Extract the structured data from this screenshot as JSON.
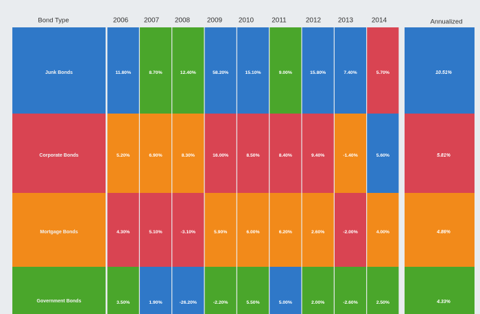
{
  "chart_data": {
    "type": "table",
    "header_label": "Bond Type",
    "years": [
      "2006",
      "2007",
      "2008",
      "2009",
      "2010",
      "2011",
      "2012",
      "2013",
      "2014"
    ],
    "annualized_label": "Annualized",
    "colors": {
      "Junk Bonds": "#2f78c8",
      "Corporate Bonds": "#d94452",
      "Mortgage Bonds": "#f28a1a",
      "Government Bonds": "#4aa62b"
    },
    "grid": [
      [
        {
          "label": "11.80%",
          "bond": "Junk Bonds"
        },
        {
          "label": "8.70%",
          "bond": "Government Bonds"
        },
        {
          "label": "12.40%",
          "bond": "Government Bonds"
        },
        {
          "label": "58.20%",
          "bond": "Junk Bonds"
        },
        {
          "label": "15.10%",
          "bond": "Junk Bonds"
        },
        {
          "label": "9.00%",
          "bond": "Government Bonds"
        },
        {
          "label": "15.80%",
          "bond": "Junk Bonds"
        },
        {
          "label": "7.40%",
          "bond": "Junk Bonds"
        },
        {
          "label": "5.70%",
          "bond": "Corporate Bonds"
        }
      ],
      [
        {
          "label": "5.20%",
          "bond": "Mortgage Bonds"
        },
        {
          "label": "6.90%",
          "bond": "Mortgage Bonds"
        },
        {
          "label": "8.30%",
          "bond": "Mortgage Bonds"
        },
        {
          "label": "16.00%",
          "bond": "Corporate Bonds"
        },
        {
          "label": "8.50%",
          "bond": "Corporate Bonds"
        },
        {
          "label": "8.40%",
          "bond": "Corporate Bonds"
        },
        {
          "label": "9.40%",
          "bond": "Corporate Bonds"
        },
        {
          "label": "-1.40%",
          "bond": "Mortgage Bonds"
        },
        {
          "label": "5.60%",
          "bond": "Junk Bonds"
        }
      ],
      [
        {
          "label": "4.30%",
          "bond": "Corporate Bonds"
        },
        {
          "label": "5.10%",
          "bond": "Corporate Bonds"
        },
        {
          "label": "-3.10%",
          "bond": "Corporate Bonds"
        },
        {
          "label": "5.90%",
          "bond": "Mortgage Bonds"
        },
        {
          "label": "6.00%",
          "bond": "Mortgage Bonds"
        },
        {
          "label": "6.20%",
          "bond": "Mortgage Bonds"
        },
        {
          "label": "2.60%",
          "bond": "Mortgage Bonds"
        },
        {
          "label": "-2.00%",
          "bond": "Corporate Bonds"
        },
        {
          "label": "4.00%",
          "bond": "Mortgage Bonds"
        }
      ],
      [
        {
          "label": "3.50%",
          "bond": "Government Bonds"
        },
        {
          "label": "1.90%",
          "bond": "Junk Bonds"
        },
        {
          "label": "-26.20%",
          "bond": "Junk Bonds"
        },
        {
          "label": "-2.20%",
          "bond": "Government Bonds"
        },
        {
          "label": "5.50%",
          "bond": "Government Bonds"
        },
        {
          "label": "5.00%",
          "bond": "Junk Bonds"
        },
        {
          "label": "2.00%",
          "bond": "Government Bonds"
        },
        {
          "label": "-2.60%",
          "bond": "Government Bonds"
        },
        {
          "label": "2.50%",
          "bond": "Government Bonds"
        }
      ]
    ],
    "annualized": [
      {
        "label": "10.51%",
        "bond": "Junk Bonds"
      },
      {
        "label": "5.81%",
        "bond": "Corporate Bonds"
      },
      {
        "label": "4.86%",
        "bond": "Mortgage Bonds"
      },
      {
        "label": "4.33%",
        "bond": "Government Bonds"
      }
    ],
    "row_labels": [
      "Junk Bonds",
      "Corporate Bonds",
      "Mortgage Bonds",
      "Government Bonds"
    ]
  }
}
